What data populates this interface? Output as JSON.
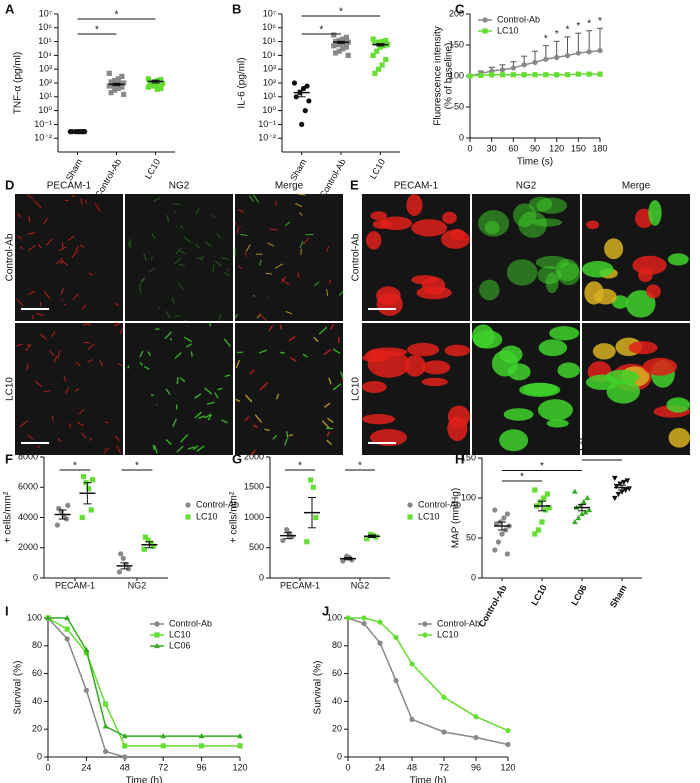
{
  "chart_data": [
    {
      "panel": "A",
      "type": "dot",
      "ylabel": "TNF-α (pg/ml)",
      "log": true,
      "ylim": [
        0.001,
        10000000
      ],
      "yticks": [
        {
          "value": 0.01,
          "label": "10⁻²"
        },
        {
          "value": 0.1,
          "label": "10⁻¹"
        },
        {
          "value": 1,
          "label": "10⁰"
        },
        {
          "value": 10,
          "label": "10¹"
        },
        {
          "value": 100,
          "label": "10²"
        },
        {
          "value": 1000,
          "label": "10³"
        },
        {
          "value": 10000,
          "label": "10⁴"
        },
        {
          "value": 100000,
          "label": "10⁵"
        },
        {
          "value": 1000000,
          "label": "10⁶"
        },
        {
          "value": 10000000,
          "label": "10⁷"
        }
      ],
      "categories": [
        "Sham",
        "Control-Ab",
        "LC10"
      ],
      "series": [
        {
          "color": [
            "#111111",
            "#888888",
            "#66dd33"
          ],
          "marker": [
            "circle",
            "square",
            "square"
          ],
          "points": [
            [
              0.03,
              0.03,
              0.03,
              0.03,
              0.03,
              0.03,
              0.03,
              0.03
            ],
            [
              500,
              300,
              200,
              150,
              120,
              100,
              90,
              80,
              70,
              60,
              50,
              40,
              30,
              20,
              15
            ],
            [
              200,
              180,
              150,
              120,
              100,
              90,
              80,
              70,
              60,
              50,
              40,
              35
            ]
          ],
          "means": [
            0.03,
            80,
            130
          ],
          "errors": [
            0.002,
            15,
            30
          ]
        }
      ],
      "brackets": [
        {
          "from": "Sham",
          "to": "Control-Ab",
          "label": "*"
        },
        {
          "from": "Sham",
          "to": "LC10",
          "label": "*"
        }
      ]
    },
    {
      "panel": "B",
      "type": "dot",
      "ylabel": "IL-6 (pg/ml)",
      "log": true,
      "ylim": [
        0.001,
        10000000
      ],
      "yticks": [
        {
          "value": 0.01,
          "label": "10⁻²"
        },
        {
          "value": 0.1,
          "label": "10⁻¹"
        },
        {
          "value": 1,
          "label": "10⁰"
        },
        {
          "value": 10,
          "label": "10¹"
        },
        {
          "value": 100,
          "label": "10²"
        },
        {
          "value": 1000,
          "label": "10³"
        },
        {
          "value": 10000,
          "label": "10⁴"
        },
        {
          "value": 100000,
          "label": "10⁵"
        },
        {
          "value": 1000000,
          "label": "10⁶"
        },
        {
          "value": 10000000,
          "label": "10⁷"
        }
      ],
      "categories": [
        "Sham",
        "Control-Ab",
        "LC10"
      ],
      "series": [
        {
          "color": [
            "#111111",
            "#888888",
            "#66dd33"
          ],
          "marker": [
            "circle",
            "square",
            "square"
          ],
          "points": [
            [
              100,
              60,
              40,
              20,
              10,
              5,
              1,
              0.1
            ],
            [
              300000,
              200000,
              150000,
              120000,
              100000,
              90000,
              80000,
              70000,
              60000,
              50000,
              40000,
              30000,
              20000,
              15000,
              10000
            ],
            [
              150000,
              120000,
              100000,
              90000,
              80000,
              60000,
              50000,
              40000,
              20000,
              10000,
              5000,
              2000,
              1000,
              500
            ]
          ],
          "means": [
            20,
            90000,
            60000
          ],
          "errors": [
            10,
            15000,
            12000
          ]
        }
      ],
      "brackets": [
        {
          "from": "Sham",
          "to": "Control-Ab",
          "label": "*"
        },
        {
          "from": "Sham",
          "to": "LC10",
          "label": "*"
        }
      ]
    },
    {
      "panel": "C",
      "type": "line",
      "ylabel": [
        "Fluorescence intensity",
        "(% of baseline)"
      ],
      "xlabel": "Time (s)",
      "x": [
        0,
        15,
        30,
        45,
        60,
        75,
        90,
        105,
        120,
        135,
        150,
        165,
        180
      ],
      "xlim": [
        0,
        180
      ],
      "xticks": [
        0,
        30,
        60,
        90,
        120,
        150,
        180
      ],
      "ylim": [
        0,
        200
      ],
      "yticks": [
        0,
        50,
        100,
        150,
        200
      ],
      "legend": "upper-left",
      "series": [
        {
          "name": "Control-Ab",
          "color": "#888888",
          "marker": "circle",
          "values": [
            100,
            104,
            108,
            110,
            113,
            118,
            122,
            127,
            130,
            133,
            137,
            139,
            141
          ],
          "errors": [
            0,
            4,
            6,
            8,
            10,
            14,
            18,
            22,
            26,
            30,
            32,
            34,
            36
          ]
        },
        {
          "name": "LC10",
          "color": "#66dd33",
          "marker": "square",
          "values": [
            100,
            101,
            102,
            102,
            102,
            102,
            102,
            102,
            102,
            102,
            103,
            103,
            103
          ]
        }
      ],
      "annotations": [
        {
          "x": 105,
          "text": "*"
        },
        {
          "x": 120,
          "text": "*"
        },
        {
          "x": 135,
          "text": "*"
        },
        {
          "x": 150,
          "text": "*"
        },
        {
          "x": 165,
          "text": "*"
        },
        {
          "x": 180,
          "text": "*"
        }
      ]
    },
    {
      "panel": "F",
      "type": "dot",
      "ylabel": "+ cells/mm²",
      "ylim": [
        0,
        8000
      ],
      "yticks": [
        0,
        2000,
        4000,
        6000,
        8000
      ],
      "categories": [
        "PECAM-1",
        "NG2"
      ],
      "legend": "right",
      "series": [
        {
          "name": "Control-Ab",
          "color": "#888888",
          "marker": "circle",
          "points": [
            [
              3500,
              3900,
              4100,
              4400,
              4600,
              4800
            ],
            [
              400,
              600,
              900,
              1300,
              1600
            ]
          ],
          "means": [
            4200,
            800
          ],
          "errors": [
            300,
            200
          ]
        },
        {
          "name": "LC10",
          "color": "#66dd33",
          "marker": "square",
          "points": [
            [
              4000,
              4500,
              5900,
              6300,
              6700,
              6500
            ],
            [
              1900,
              2100,
              2300,
              2500,
              2700
            ]
          ],
          "means": [
            5600,
            2200
          ],
          "errors": [
            700,
            200
          ]
        }
      ],
      "brackets": [
        {
          "category": "PECAM-1",
          "label": "*"
        },
        {
          "category": "NG2",
          "label": "*"
        }
      ]
    },
    {
      "panel": "G",
      "type": "dot",
      "ylabel": "+ cells/mm²",
      "ylim": [
        0,
        2000
      ],
      "yticks": [
        0,
        500,
        1000,
        1500,
        2000
      ],
      "categories": [
        "PECAM-1",
        "NG2"
      ],
      "legend": "right",
      "series": [
        {
          "name": "Control-Ab",
          "color": "#888888",
          "marker": "circle",
          "points": [
            [
              620,
              680,
              740,
              800
            ],
            [
              280,
              300,
              340,
              360
            ]
          ],
          "means": [
            700,
            320
          ],
          "errors": [
            50,
            20
          ]
        },
        {
          "name": "LC10",
          "color": "#66dd33",
          "marker": "square",
          "points": [
            [
              600,
              1000,
              1500,
              1620
            ],
            [
              650,
              680,
              700,
              720
            ]
          ],
          "means": [
            1080,
            690
          ],
          "errors": [
            250,
            20
          ]
        }
      ],
      "brackets": [
        {
          "category": "PECAM-1",
          "label": "*"
        },
        {
          "category": "NG2",
          "label": "*"
        }
      ]
    },
    {
      "panel": "H",
      "type": "dot",
      "ylabel": "MAP (mmHg)",
      "ylim": [
        0,
        150
      ],
      "yticks": [
        0,
        50,
        100,
        150
      ],
      "categories": [
        "Control-Ab",
        "LC10",
        "LC06",
        "Sham"
      ],
      "series": [
        {
          "color": [
            "#888888",
            "#66dd33",
            "#33aa22",
            "#111111"
          ],
          "marker": [
            "circle",
            "square",
            "triangle",
            "triangle-down"
          ],
          "points": [
            [
              85,
              80,
              75,
              70,
              68,
              65,
              60,
              55,
              45,
              35,
              30
            ],
            [
              110,
              105,
              100,
              95,
              90,
              88,
              85,
              70,
              60,
              55
            ],
            [
              108,
              100,
              95,
              90,
              88,
              85,
              82,
              80,
              75,
              70
            ],
            [
              125,
              122,
              120,
              118,
              115,
              112,
              110,
              108,
              105,
              100
            ]
          ],
          "means": [
            65,
            90,
            88,
            113
          ],
          "errors": [
            5,
            6,
            4,
            3
          ]
        }
      ],
      "brackets": [
        {
          "from": "Control-Ab",
          "to": "LC10",
          "label": "*"
        },
        {
          "from": "Control-Ab",
          "to": "LC06",
          "label": "*"
        },
        {
          "from": "LC06",
          "to": "Sham",
          "label": "*"
        },
        {
          "from": "LC10",
          "to": "Sham",
          "label": "*"
        },
        {
          "from": "Control-Ab",
          "to": "Sham",
          "label": "*"
        }
      ]
    },
    {
      "panel": "I",
      "type": "line",
      "ylabel": "Survival (%)",
      "xlabel": "Time (h)",
      "x": [
        0,
        12,
        24,
        36,
        48,
        72,
        96,
        120
      ],
      "xlim": [
        0,
        120
      ],
      "xticks": [
        0,
        24,
        48,
        72,
        96,
        120
      ],
      "ylim": [
        0,
        100
      ],
      "yticks": [
        0,
        20,
        40,
        60,
        80,
        100
      ],
      "legend": "upper-right",
      "series": [
        {
          "name": "Control-Ab",
          "color": "#888888",
          "marker": "circle",
          "values": [
            100,
            85,
            48,
            4,
            0,
            null,
            null,
            null
          ]
        },
        {
          "name": "LC10",
          "color": "#66dd33",
          "marker": "square",
          "values": [
            100,
            92,
            75,
            38,
            8,
            8,
            8,
            8
          ]
        },
        {
          "name": "LC06",
          "color": "#33aa22",
          "marker": "triangle",
          "values": [
            100,
            100,
            77,
            22,
            15,
            15,
            15,
            15
          ]
        }
      ]
    },
    {
      "panel": "J",
      "type": "line",
      "ylabel": "Survival (%)",
      "xlabel": "Time (h)",
      "x": [
        0,
        12,
        24,
        36,
        48,
        72,
        96,
        120
      ],
      "xlim": [
        0,
        120
      ],
      "xticks": [
        0,
        24,
        48,
        72,
        96,
        120
      ],
      "ylim": [
        0,
        100
      ],
      "yticks": [
        0,
        20,
        40,
        60,
        80,
        100
      ],
      "legend": "upper-right",
      "series": [
        {
          "name": "Control-Ab",
          "color": "#888888",
          "marker": "circle",
          "values": [
            100,
            96,
            82,
            55,
            27,
            18,
            14,
            9
          ]
        },
        {
          "name": "LC10",
          "color": "#66dd33",
          "marker": "circle",
          "values": [
            100,
            100,
            97,
            86,
            67,
            43,
            29,
            19
          ]
        }
      ]
    }
  ],
  "image_panels": [
    {
      "panel": "D",
      "columns": [
        "PECAM-1",
        "NG2",
        "Merge"
      ],
      "rows": [
        "Control-Ab",
        "LC10"
      ]
    },
    {
      "panel": "E",
      "columns": [
        "PECAM-1",
        "NG2",
        "Merge"
      ],
      "rows": [
        "Control-Ab",
        "LC10"
      ]
    }
  ]
}
